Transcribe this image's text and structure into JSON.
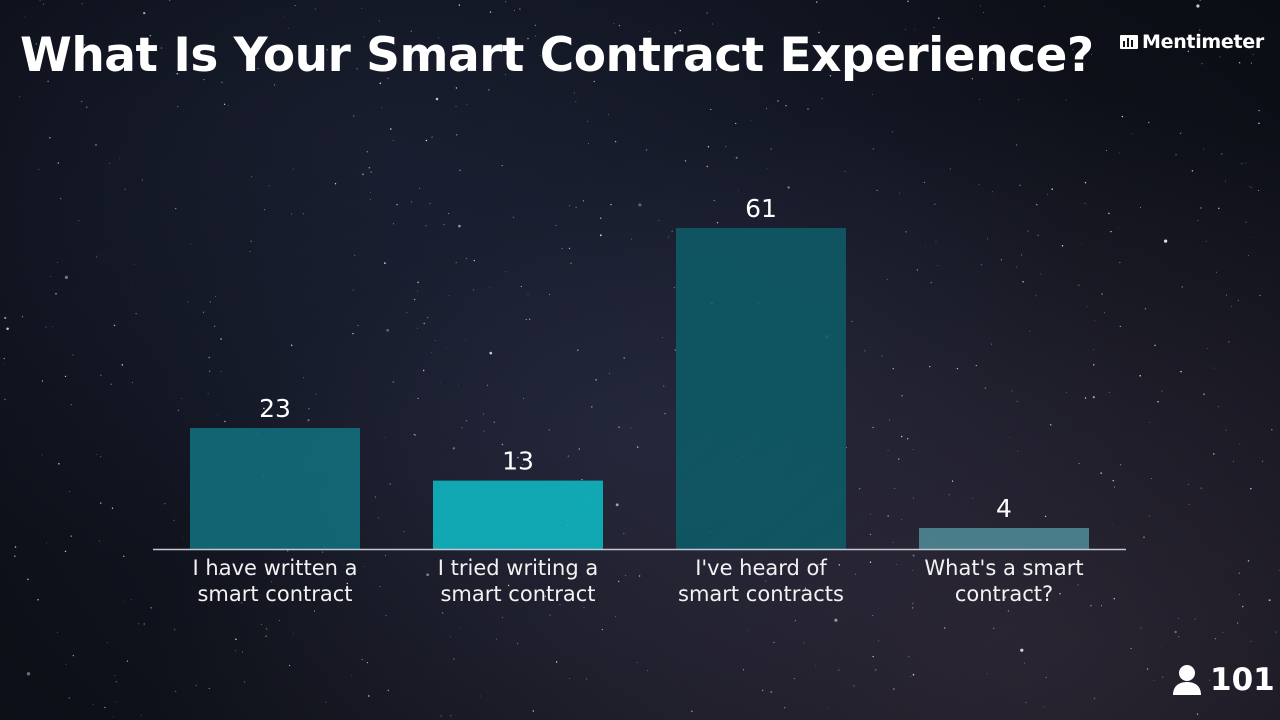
{
  "title": "What Is Your Smart Contract Experience?",
  "brand": {
    "name": "Mentimeter",
    "logo_icon": "bar-chart-logo-icon"
  },
  "participants": {
    "icon": "person-icon",
    "count": "101"
  },
  "colors": {
    "bar_1": "#116b78",
    "bar_2": "#0fb3be",
    "bar_3": "#0e5965",
    "bar_4": "#4c8591",
    "baseline": "#c8c8d2"
  },
  "chart_data": {
    "type": "bar",
    "categories": [
      "I have written a smart contract",
      "I tried writing a smart contract",
      "I've heard of smart contracts",
      "What's a smart contract?"
    ],
    "values": [
      23,
      13,
      61,
      4
    ],
    "value_labels": [
      "23",
      "13",
      "61",
      "4"
    ],
    "ylim": [
      0,
      61
    ],
    "grid": false,
    "legend": "none"
  }
}
